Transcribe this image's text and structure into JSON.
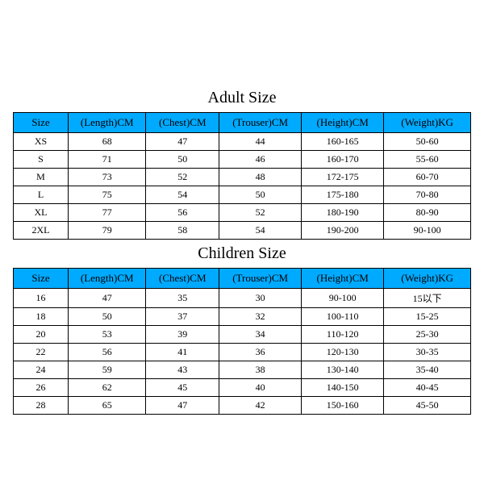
{
  "styling": {
    "header_bg": "#00aaff",
    "border_color": "#000000",
    "page_bg": "#ffffff",
    "title_fontsize_pt": 20,
    "header_fontsize_pt": 13,
    "cell_fontsize_pt": 12,
    "font_family": "Times New Roman"
  },
  "adult": {
    "title": "Adult Size",
    "columns": [
      "Size",
      "(Length)CM",
      "(Chest)CM",
      "(Trouser)CM",
      "(Height)CM",
      "(Weight)KG"
    ],
    "rows": [
      [
        "XS",
        "68",
        "47",
        "44",
        "160-165",
        "50-60"
      ],
      [
        "S",
        "71",
        "50",
        "46",
        "160-170",
        "55-60"
      ],
      [
        "M",
        "73",
        "52",
        "48",
        "172-175",
        "60-70"
      ],
      [
        "L",
        "75",
        "54",
        "50",
        "175-180",
        "70-80"
      ],
      [
        "XL",
        "77",
        "56",
        "52",
        "180-190",
        "80-90"
      ],
      [
        "2XL",
        "79",
        "58",
        "54",
        "190-200",
        "90-100"
      ]
    ]
  },
  "children": {
    "title": "Children Size",
    "columns": [
      "Size",
      "(Length)CM",
      "(Chest)CM",
      "(Trouser)CM",
      "(Height)CM",
      "(Weight)KG"
    ],
    "rows": [
      [
        "16",
        "47",
        "35",
        "30",
        "90-100",
        "15以下"
      ],
      [
        "18",
        "50",
        "37",
        "32",
        "100-110",
        "15-25"
      ],
      [
        "20",
        "53",
        "39",
        "34",
        "110-120",
        "25-30"
      ],
      [
        "22",
        "56",
        "41",
        "36",
        "120-130",
        "30-35"
      ],
      [
        "24",
        "59",
        "43",
        "38",
        "130-140",
        "35-40"
      ],
      [
        "26",
        "62",
        "45",
        "40",
        "140-150",
        "40-45"
      ],
      [
        "28",
        "65",
        "47",
        "42",
        "150-160",
        "45-50"
      ]
    ]
  }
}
